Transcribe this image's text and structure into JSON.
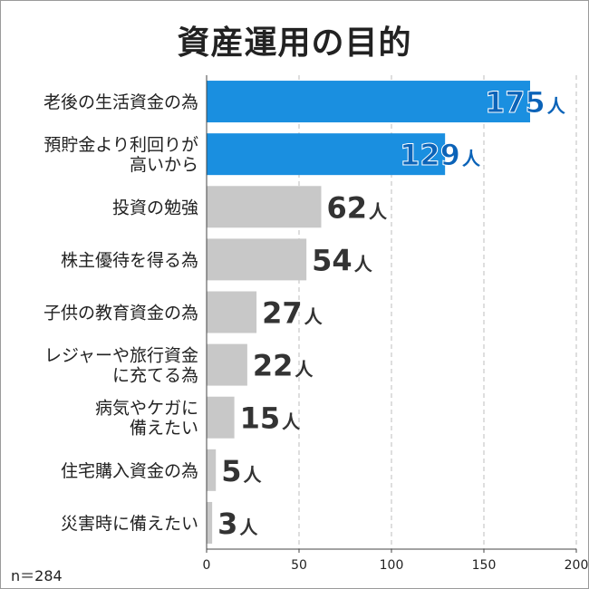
{
  "chart_data": {
    "type": "bar",
    "orientation": "horizontal",
    "title": "資産運用の目的",
    "categories": [
      "老後の生活資金の為",
      "預貯金より利回りが\n高いから",
      "投資の勉強",
      "株主優待を得る為",
      "子供の教育資金の為",
      "レジャーや旅行資金\nに充てる為",
      "病気やケガに\n備えたい",
      "住宅購入資金の為",
      "災害時に備えたい"
    ],
    "values": [
      175,
      129,
      62,
      54,
      27,
      22,
      15,
      5,
      3
    ],
    "value_unit": "人",
    "xlim": [
      0,
      200
    ],
    "xticks": [
      0,
      50,
      100,
      150,
      200
    ],
    "grid": "vertical dashed",
    "highlight_count": 2,
    "colors": {
      "highlight": "#1a8fe0",
      "normal": "#c8c8c8",
      "highlight_text": "#0b63b8",
      "normal_text": "#333333"
    },
    "note": "n＝284"
  }
}
